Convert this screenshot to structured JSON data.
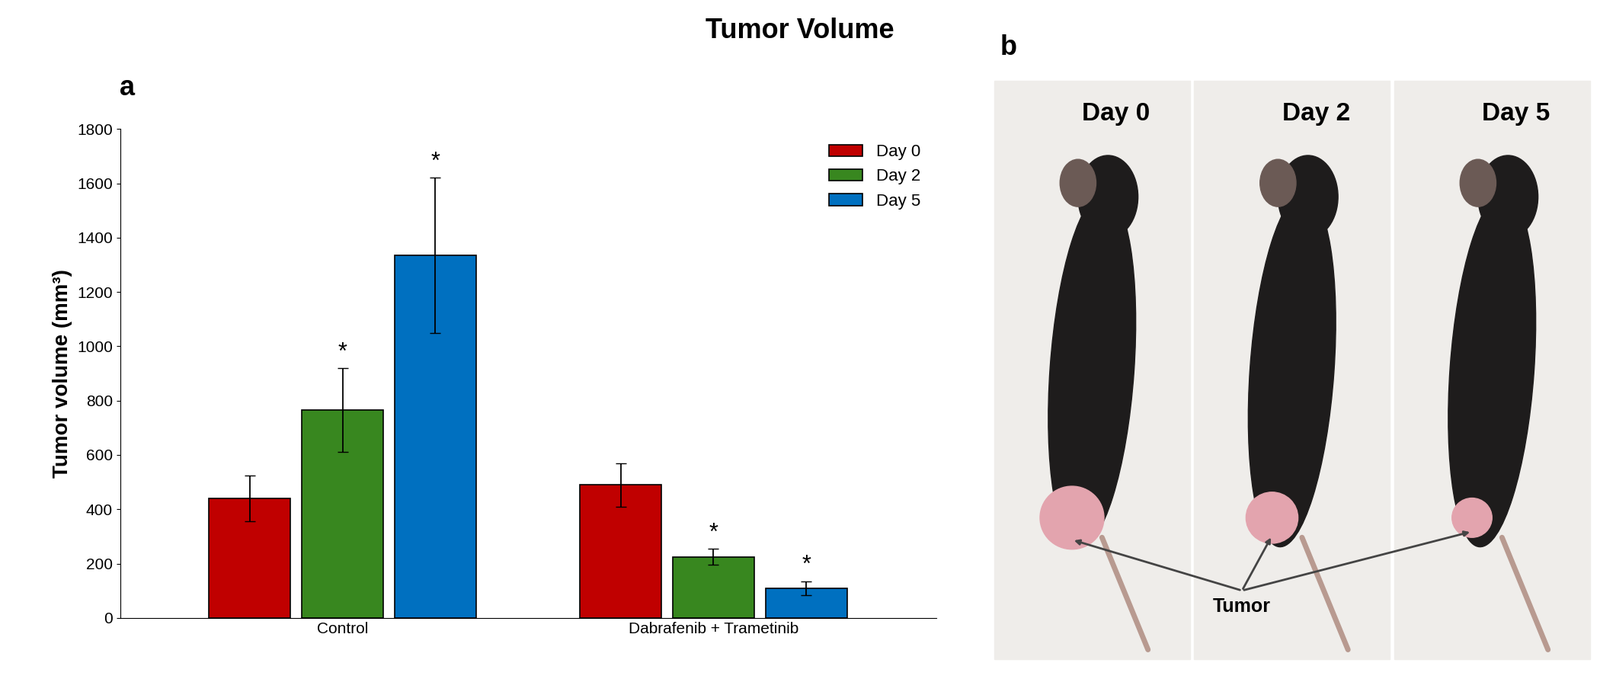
{
  "title": "Tumor Volume",
  "chart_data": {
    "type": "bar",
    "panel": "a",
    "categories": [
      "Control",
      "Dabrafenib + Trametinib"
    ],
    "y_label": "Tumor volume (mm³)",
    "ylim": [
      0,
      1800
    ],
    "yticks": [
      0,
      200,
      400,
      600,
      800,
      1000,
      1200,
      1400,
      1600,
      1800
    ],
    "legend": "upper right",
    "series": [
      {
        "name": "Day 0",
        "color": "#c00000",
        "values": [
          440,
          490
        ],
        "errors": [
          85,
          80
        ],
        "significance": [
          null,
          null
        ]
      },
      {
        "name": "Day 2",
        "color": "#38871f",
        "values": [
          765,
          225
        ],
        "errors": [
          155,
          30
        ],
        "significance": [
          "*",
          "*"
        ]
      },
      {
        "name": "Day 5",
        "color": "#0070c0",
        "values": [
          1335,
          110
        ],
        "errors": [
          285,
          25
        ],
        "significance": [
          "*",
          "*"
        ]
      }
    ]
  },
  "photo": {
    "panel": "b",
    "labels": [
      "Day 0",
      "Day 2",
      "Day 5"
    ],
    "pointer_label": "Tumor"
  }
}
